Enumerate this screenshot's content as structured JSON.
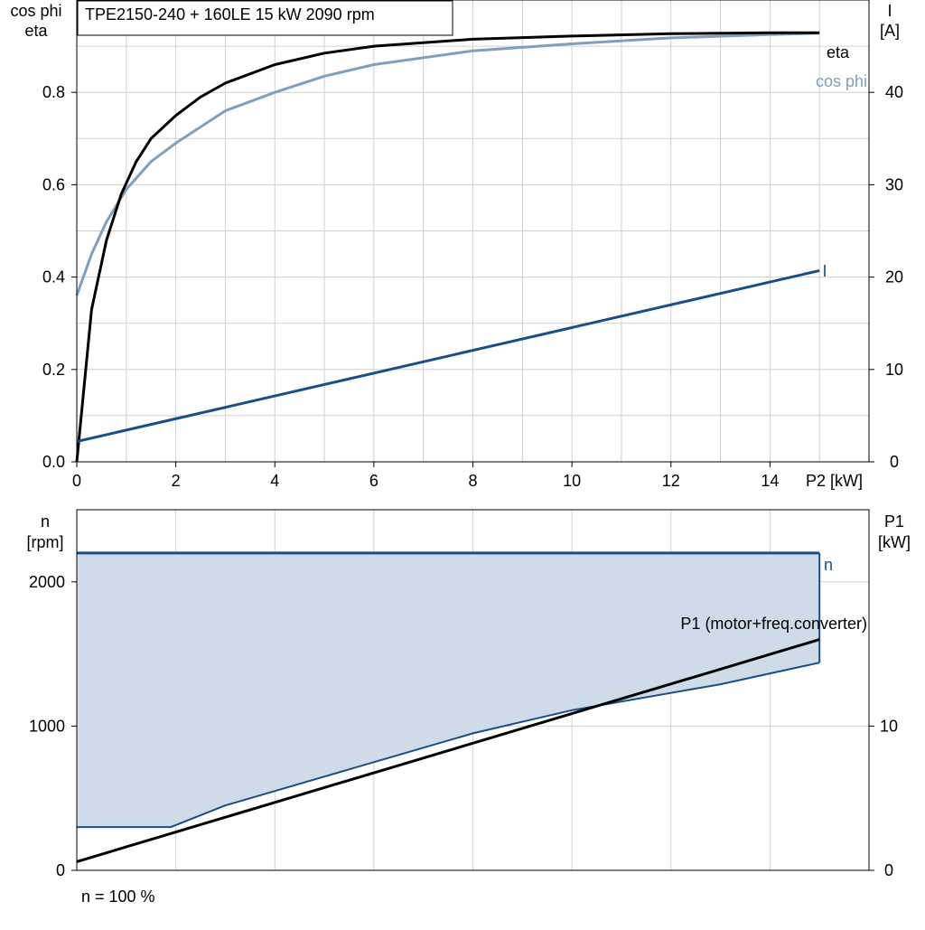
{
  "header": {
    "title": "TPE2150-240 + 160LE   15 kW   2090 rpm"
  },
  "footer": {
    "note": "n = 100 %"
  },
  "colors": {
    "eta": "#000000",
    "cos_phi": "#7f9fbf",
    "current": "#1a4f85",
    "n": "#1a4f85",
    "band_fill": "#cfdbe8",
    "grid": "#d0d0d0",
    "p1": "#000000"
  },
  "chart_data": [
    {
      "type": "line",
      "axis_labels": {
        "left": [
          "cos phi",
          "eta"
        ],
        "right": [
          "I",
          "[A]"
        ],
        "x": "P2 [kW]"
      },
      "x_ticks": [
        "0",
        "2",
        "4",
        "6",
        "8",
        "10",
        "12",
        "14"
      ],
      "y_left_ticks": [
        "0.0",
        "0.2",
        "0.4",
        "0.6",
        "0.8"
      ],
      "y_right_ticks": [
        "0",
        "10",
        "20",
        "30",
        "40"
      ],
      "xlim": [
        0,
        16
      ],
      "ylim_left": [
        0,
        1.0
      ],
      "ylim_right": [
        0,
        50
      ],
      "grid": true,
      "series": [
        {
          "name": "eta",
          "axis": "left",
          "x": [
            0,
            0.3,
            0.6,
            0.9,
            1.2,
            1.5,
            2,
            2.5,
            3,
            4,
            5,
            6,
            8,
            10,
            12,
            14,
            15
          ],
          "y": [
            0,
            0.33,
            0.48,
            0.58,
            0.65,
            0.7,
            0.75,
            0.79,
            0.82,
            0.86,
            0.885,
            0.9,
            0.915,
            0.922,
            0.927,
            0.929,
            0.929
          ]
        },
        {
          "name": "cos phi",
          "axis": "left",
          "x": [
            0,
            0.3,
            0.6,
            1,
            1.5,
            2,
            3,
            4,
            5,
            6,
            8,
            10,
            12,
            14,
            15
          ],
          "y": [
            0.36,
            0.45,
            0.52,
            0.59,
            0.65,
            0.69,
            0.76,
            0.8,
            0.835,
            0.86,
            0.89,
            0.905,
            0.918,
            0.925,
            0.928
          ]
        },
        {
          "name": "I",
          "axis": "right",
          "x": [
            0,
            15
          ],
          "y": [
            2.2,
            20.7
          ]
        }
      ]
    },
    {
      "type": "area",
      "axis_labels": {
        "left": [
          "n",
          "[rpm]"
        ],
        "right": [
          "P1",
          "[kW]"
        ]
      },
      "y_left_ticks": [
        "0",
        "1000",
        "2000"
      ],
      "y_right_ticks": [
        "0",
        "10"
      ],
      "xlim": [
        0,
        16
      ],
      "ylim_left": [
        0,
        2500
      ],
      "ylim_right": [
        0,
        25
      ],
      "grid": true,
      "series": [
        {
          "name": "n",
          "axis": "left",
          "role": "upper",
          "x": [
            0,
            15
          ],
          "y": [
            2200,
            2200
          ]
        },
        {
          "name": "n",
          "axis": "left",
          "role": "lower",
          "x": [
            0,
            1.9,
            3,
            5.7,
            8,
            10,
            13,
            15
          ],
          "y": [
            300,
            300,
            450,
            720,
            950,
            1110,
            1290,
            1440
          ]
        },
        {
          "name": "P1 (motor+freq.converter)",
          "axis": "right",
          "x": [
            0,
            15
          ],
          "y": [
            0.6,
            16.0
          ]
        }
      ]
    }
  ]
}
